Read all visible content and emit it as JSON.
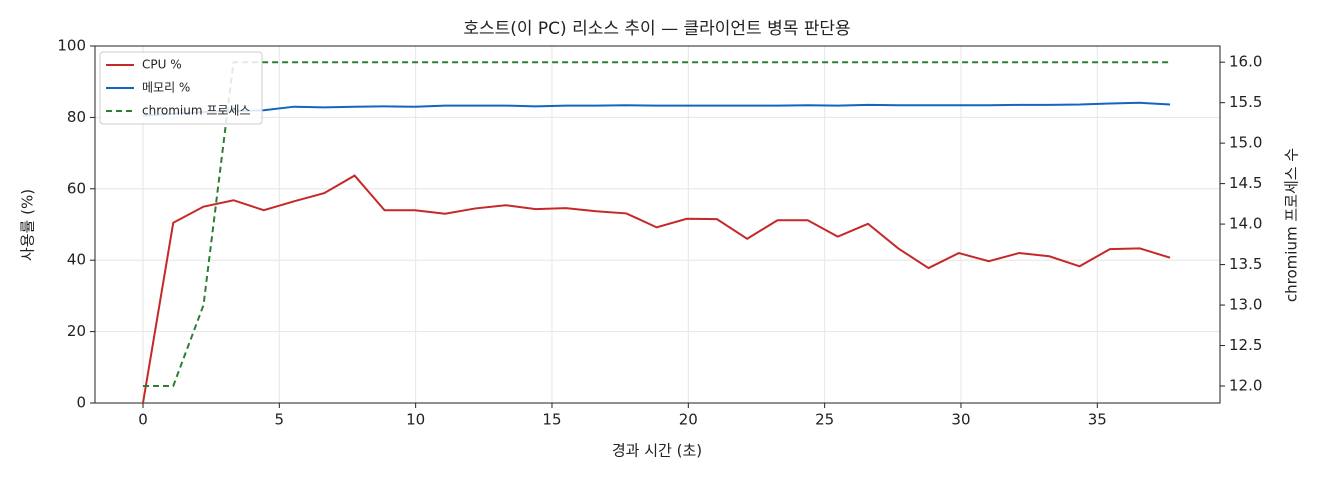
{
  "chart_data": {
    "type": "line",
    "title": "호스트(이 PC) 리소스 추이 — 클라이언트 병목 판단용",
    "x_label": "경과 시간 (초)",
    "y_label": "사용률 (%)",
    "y2_label": "chromium 프로세스 수",
    "x": [
      0,
      1.11,
      2.22,
      3.32,
      4.43,
      5.54,
      6.65,
      7.76,
      8.86,
      9.97,
      11.08,
      12.19,
      13.3,
      14.4,
      15.51,
      16.62,
      17.73,
      18.84,
      19.94,
      21.05,
      22.16,
      23.27,
      24.38,
      25.48,
      26.59,
      27.7,
      28.81,
      29.92,
      31.02,
      32.13,
      33.24,
      34.35,
      35.46,
      36.56,
      37.67
    ],
    "series": [
      {
        "name": "CPU %",
        "color": "#c62828",
        "dash": false,
        "values": [
          0,
          50.5,
          55,
          56.8,
          54,
          56.5,
          58.8,
          63.7,
          54,
          54,
          53,
          54.5,
          55.4,
          54.3,
          54.6,
          53.7,
          53.1,
          49.2,
          51.6,
          51.5,
          46,
          51.2,
          51.2,
          46.6,
          50.2,
          43.3,
          37.8,
          42,
          39.7,
          42,
          41.1,
          38.3,
          43.1,
          43.3,
          40.7
        ]
      },
      {
        "name": "메모리 %",
        "color": "#1565c0",
        "dash": false,
        "values": [
          80.5,
          81,
          81.5,
          81.8,
          82,
          83,
          82.8,
          83,
          83.1,
          83,
          83.3,
          83.3,
          83.3,
          83.1,
          83.3,
          83.3,
          83.4,
          83.3,
          83.3,
          83.3,
          83.3,
          83.3,
          83.4,
          83.3,
          83.5,
          83.4,
          83.4,
          83.4,
          83.4,
          83.5,
          83.5,
          83.6,
          83.9,
          84.1,
          83.6
        ]
      },
      {
        "name": "chromium 프로세스",
        "color": "#2e7d32",
        "dash": true,
        "axis": "y2",
        "values": [
          12,
          12,
          13,
          16,
          16,
          16,
          16,
          16,
          16,
          16,
          16,
          16,
          16,
          16,
          16,
          16,
          16,
          16,
          16,
          16,
          16,
          16,
          16,
          16,
          16,
          16,
          16,
          16,
          16,
          16,
          16,
          16,
          16,
          16,
          16
        ]
      }
    ],
    "xlim": [
      -1.76,
      39.5
    ],
    "xticks": [
      0,
      5,
      10,
      15,
      20,
      25,
      30,
      35
    ],
    "ylim": [
      0,
      100
    ],
    "yticks": [
      0,
      20,
      40,
      60,
      80,
      100
    ],
    "y2lim": [
      11.79,
      16.2
    ],
    "y2ticks": [
      {
        "value": 12,
        "label": "12.0"
      },
      12.5,
      {
        "value": 13,
        "label": "13.0"
      },
      13.5,
      {
        "value": 14,
        "label": "14.0"
      },
      14.5,
      {
        "value": 15,
        "label": "15.0"
      },
      15.5,
      {
        "value": 16,
        "label": "16.0"
      }
    ],
    "grid": true,
    "legend": "upper-left"
  }
}
